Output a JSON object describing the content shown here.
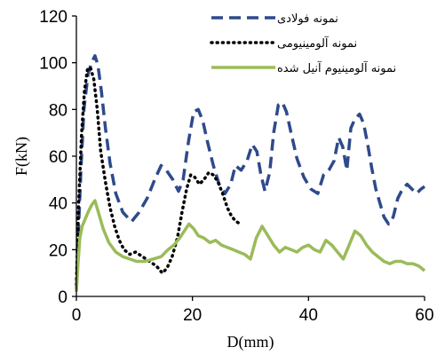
{
  "chart_data": {
    "type": "line",
    "title": "",
    "xlabel": "D(mm)",
    "ylabel": "F(kN)",
    "xlim": [
      0,
      60
    ],
    "ylim": [
      0,
      120
    ],
    "x_ticks": [
      "0",
      "20",
      "40",
      "60"
    ],
    "y_ticks": [
      "0",
      "20",
      "40",
      "60",
      "80",
      "100",
      "120"
    ],
    "grid": false,
    "legend_position": "top-right",
    "series": [
      {
        "name": "نمونه فولادی",
        "color": "#2E4A8B",
        "style": "dashed",
        "x": [
          0,
          0.3,
          0.8,
          1.3,
          2.0,
          2.6,
          3.2,
          3.7,
          4.3,
          5.0,
          5.8,
          6.8,
          8.0,
          9.5,
          10.8,
          12.2,
          13.5,
          14.6,
          15.5,
          16.6,
          17.6,
          18.4,
          19.3,
          20.2,
          21.0,
          21.8,
          22.6,
          23.6,
          24.6,
          25.6,
          26.6,
          27.4,
          28.4,
          29.4,
          30.3,
          31.1,
          31.8,
          32.5,
          33.3,
          34.0,
          34.8,
          35.5,
          36.2,
          37.0,
          38.0,
          39.2,
          40.4,
          41.6,
          42.6,
          43.5,
          44.4,
          45.2,
          45.9,
          46.6,
          47.3,
          48.0,
          48.8,
          49.5,
          50.2,
          50.9,
          51.6,
          52.3,
          53.0,
          53.8,
          54.6,
          55.4,
          56.2,
          57.0,
          57.8,
          58.6,
          59.4,
          60.0
        ],
        "y": [
          3,
          25,
          55,
          80,
          95,
          100,
          103,
          99,
          88,
          72,
          57,
          44,
          36,
          32,
          36,
          42,
          50,
          56,
          54,
          50,
          45,
          50,
          66,
          79,
          80,
          75,
          66,
          56,
          48,
          44,
          48,
          56,
          54,
          58,
          65,
          62,
          52,
          45,
          53,
          70,
          82,
          83,
          79,
          70,
          59,
          51,
          46,
          44,
          52,
          54,
          58,
          68,
          64,
          54,
          72,
          76,
          78,
          74,
          65,
          55,
          46,
          40,
          34,
          31,
          34,
          42,
          46,
          48,
          46,
          44,
          46,
          47
        ]
      },
      {
        "name": "نمونه آلومینیومی",
        "color": "#000000",
        "style": "dotted",
        "x": [
          0,
          0.4,
          0.9,
          1.4,
          1.9,
          2.4,
          3.0,
          3.6,
          4.2,
          5.0,
          5.8,
          6.6,
          7.4,
          8.2,
          9.2,
          10.2,
          11.4,
          12.6,
          13.8,
          14.8,
          15.6,
          16.5,
          17.4,
          18.2,
          19.0,
          19.7,
          20.4,
          21.2,
          22.0,
          22.8,
          23.6,
          24.4,
          25.2,
          26.0,
          26.8,
          27.6,
          28.2
        ],
        "y": [
          5,
          40,
          70,
          88,
          97,
          98,
          93,
          80,
          62,
          49,
          38,
          30,
          24,
          20,
          18,
          19,
          17,
          15,
          13,
          10,
          12,
          17,
          25,
          36,
          46,
          52,
          51,
          48,
          50,
          53,
          52,
          49,
          44,
          38,
          34,
          32,
          31
        ]
      },
      {
        "name": "نمونه آلومینیوم آنیل شده",
        "color": "#9BBB59",
        "style": "solid",
        "x": [
          0,
          0.3,
          0.6,
          1.0,
          1.5,
          2.0,
          2.6,
          3.2,
          3.8,
          4.6,
          5.6,
          6.8,
          8.0,
          9.2,
          10.4,
          11.8,
          13.2,
          14.6,
          15.8,
          16.8,
          17.8,
          18.6,
          19.4,
          20.2,
          21.0,
          22.0,
          23.0,
          24.0,
          25.0,
          26.0,
          27.0,
          28.0,
          29.0,
          30.0,
          31.0,
          32.0,
          33.0,
          34.0,
          35.0,
          36.0,
          37.0,
          38.0,
          39.0,
          40.0,
          41.0,
          42.0,
          43.0,
          44.0,
          45.0,
          46.0,
          47.0,
          48.0,
          49.0,
          50.0,
          51.0,
          52.0,
          53.0,
          54.0,
          55.0,
          56.0,
          57.0,
          58.0,
          59.0,
          60.0
        ],
        "y": [
          2,
          15,
          25,
          30,
          33,
          36,
          39,
          41,
          36,
          29,
          23,
          19,
          17,
          16,
          15,
          15,
          16,
          17,
          20,
          22,
          25,
          28,
          31,
          29,
          26,
          25,
          23,
          24,
          22,
          21,
          20,
          19,
          18,
          16,
          25,
          30,
          26,
          22,
          19,
          21,
          20,
          19,
          21,
          22,
          20,
          19,
          24,
          22,
          19,
          16,
          22,
          28,
          26,
          22,
          19,
          17,
          15,
          14,
          15,
          15,
          14,
          14,
          13,
          11
        ]
      }
    ]
  }
}
